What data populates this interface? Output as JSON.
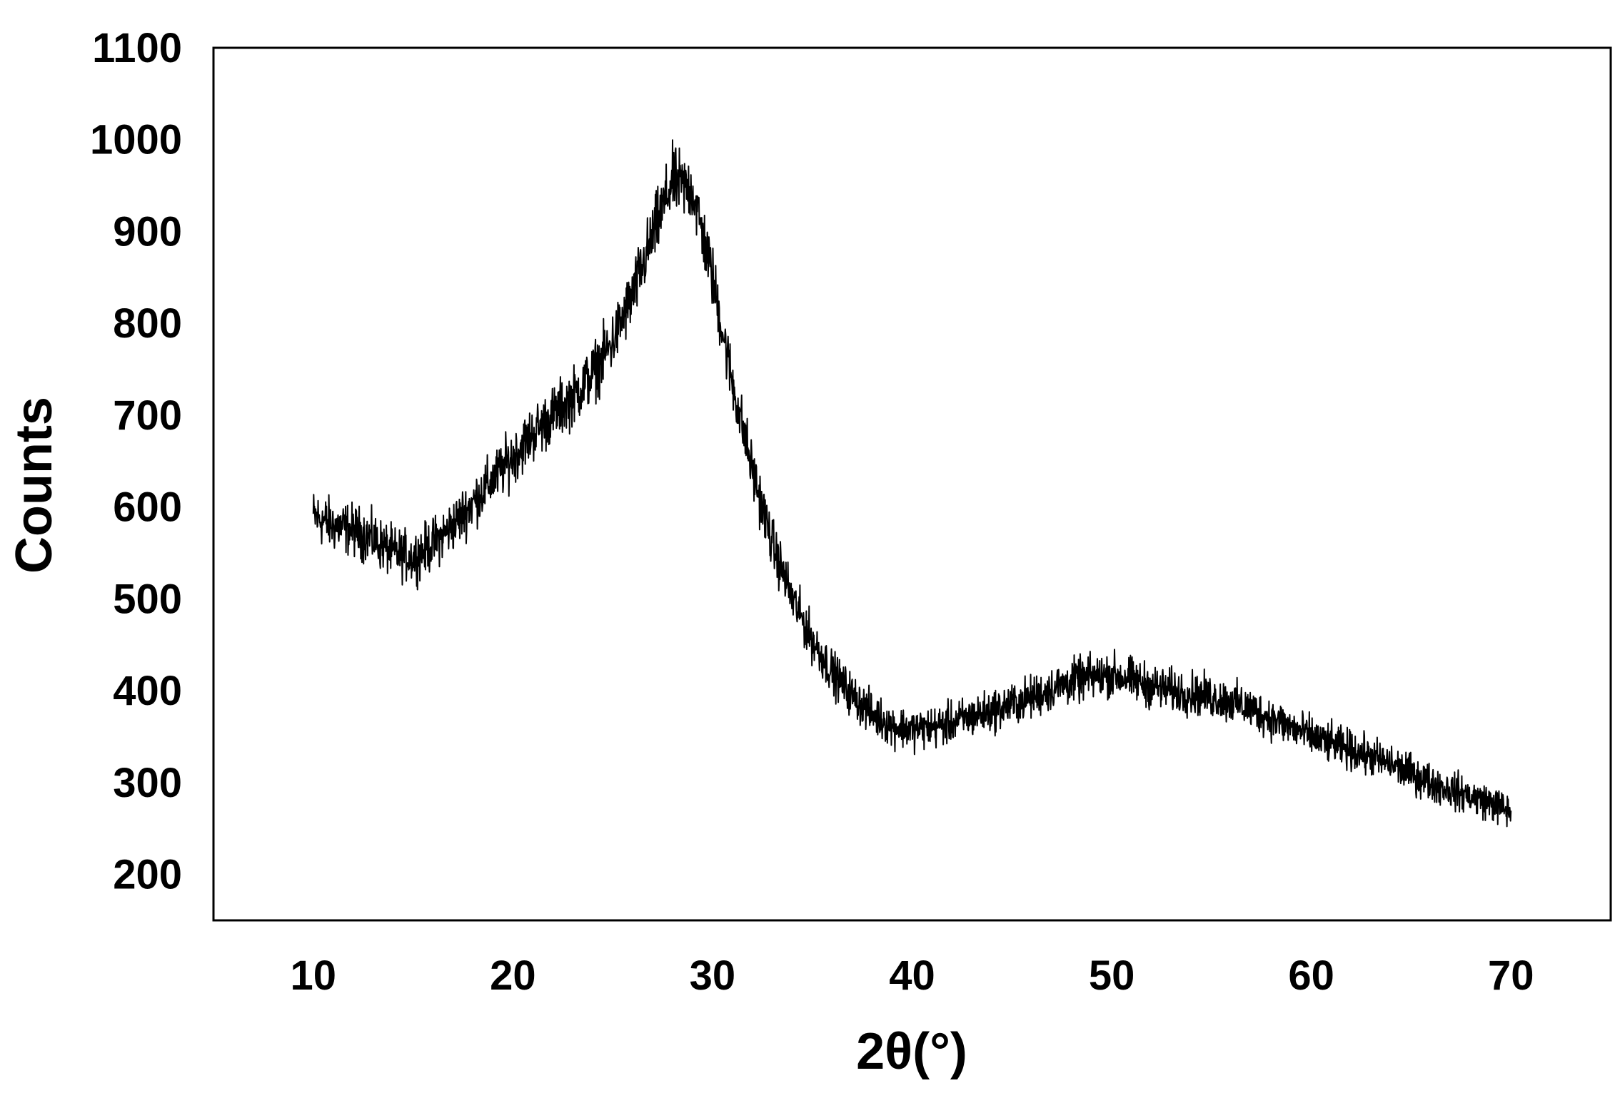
{
  "chart_data": {
    "type": "line",
    "title": "",
    "xlabel": "2θ(°)",
    "ylabel": "Counts",
    "xlim": [
      5,
      75
    ],
    "ylim": [
      150,
      1100
    ],
    "x_ticks": [
      10,
      20,
      30,
      40,
      50,
      60,
      70
    ],
    "x_tick_labels": [
      "10",
      "20",
      "30",
      "40",
      "50",
      "60",
      "70"
    ],
    "y_ticks": [
      200,
      300,
      400,
      500,
      600,
      700,
      800,
      900,
      1000,
      1100
    ],
    "y_tick_labels": [
      "200",
      "300",
      "400",
      "500",
      "600",
      "700",
      "800",
      "900",
      "1000",
      "1100"
    ],
    "grid": false,
    "legend": "none",
    "line_color": "#000000",
    "series": [
      {
        "x": [
          10,
          11,
          12,
          13,
          14,
          15,
          16,
          17,
          18,
          19,
          20,
          21,
          22,
          23,
          24,
          25,
          26,
          27,
          28,
          29,
          30,
          31,
          32,
          33,
          34,
          35,
          36,
          37,
          38,
          39,
          40,
          41,
          42,
          43,
          44,
          45,
          46,
          47,
          48,
          49,
          50,
          51,
          52,
          53,
          54,
          55,
          56,
          57,
          58,
          59,
          60,
          61,
          62,
          63,
          64,
          65,
          66,
          67,
          68,
          69,
          70
        ],
        "y": [
          590,
          580,
          575,
          565,
          550,
          545,
          560,
          580,
          605,
          630,
          655,
          680,
          700,
          720,
          745,
          780,
          830,
          895,
          955,
          945,
          850,
          735,
          640,
          560,
          500,
          455,
          420,
          395,
          375,
          362,
          358,
          360,
          365,
          372,
          378,
          385,
          393,
          402,
          410,
          415,
          418,
          412,
          405,
          400,
          397,
          393,
          388,
          380,
          370,
          360,
          350,
          342,
          335,
          328,
          320,
          310,
          300,
          292,
          285,
          278,
          268
        ]
      }
    ]
  }
}
